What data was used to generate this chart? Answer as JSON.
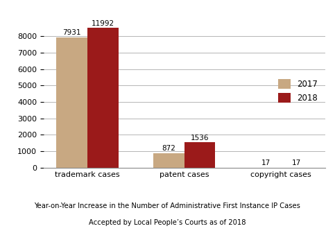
{
  "categories": [
    "trademark cases",
    "patent cases",
    "copyright cases"
  ],
  "values_2017": [
    7931,
    872,
    17
  ],
  "values_2018": [
    11992,
    1536,
    17
  ],
  "color_2017": "#c8a882",
  "color_2018": "#9b1a1a",
  "legend_labels": [
    "2017",
    "2018"
  ],
  "ylim": [
    0,
    8500
  ],
  "yticks": [
    0,
    1000,
    2000,
    3000,
    4000,
    5000,
    6000,
    7000,
    8000
  ],
  "title_line1": "Year-on-Year Increase in the Number of Administrative First Instance IP Cases",
  "title_line2": "Accepted by Local People’s Courts as of 2018",
  "bar_width": 0.32,
  "background_color": "#ffffff"
}
